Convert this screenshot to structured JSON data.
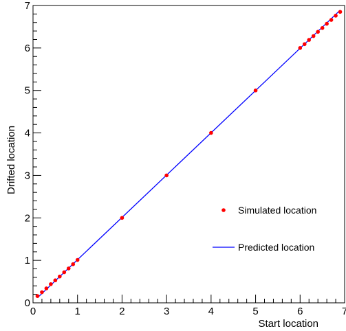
{
  "chart_data": {
    "type": "scatter",
    "xlabel": "Start location",
    "ylabel": "Drifted location",
    "xlim": [
      0,
      7
    ],
    "ylim": [
      0,
      7
    ],
    "x_ticks": [
      "0",
      "1",
      "2",
      "3",
      "4",
      "5",
      "6",
      "7"
    ],
    "y_ticks": [
      "0",
      "1",
      "2",
      "3",
      "4",
      "5",
      "6",
      "7"
    ],
    "grid": false,
    "legend_position": "right-middle",
    "series": [
      {
        "name": "Simulated location",
        "kind": "points",
        "color": "#ff0000",
        "x": [
          0.1,
          0.2,
          0.3,
          0.4,
          0.5,
          0.6,
          0.7,
          0.8,
          0.9,
          1.0,
          2.0,
          3.0,
          4.0,
          5.0,
          6.0,
          6.1,
          6.2,
          6.3,
          6.4,
          6.5,
          6.6,
          6.7,
          6.8,
          6.9
        ],
        "y": [
          0.16,
          0.25,
          0.34,
          0.44,
          0.53,
          0.62,
          0.72,
          0.81,
          0.91,
          1.01,
          2.0,
          3.0,
          4.0,
          5.0,
          6.0,
          6.09,
          6.19,
          6.28,
          6.38,
          6.47,
          6.57,
          6.66,
          6.76,
          6.85
        ]
      },
      {
        "name": "Predicted location",
        "kind": "line",
        "color": "#0000ff",
        "x": [
          0.1,
          6.9
        ],
        "y": [
          0.12,
          6.89
        ]
      }
    ]
  }
}
